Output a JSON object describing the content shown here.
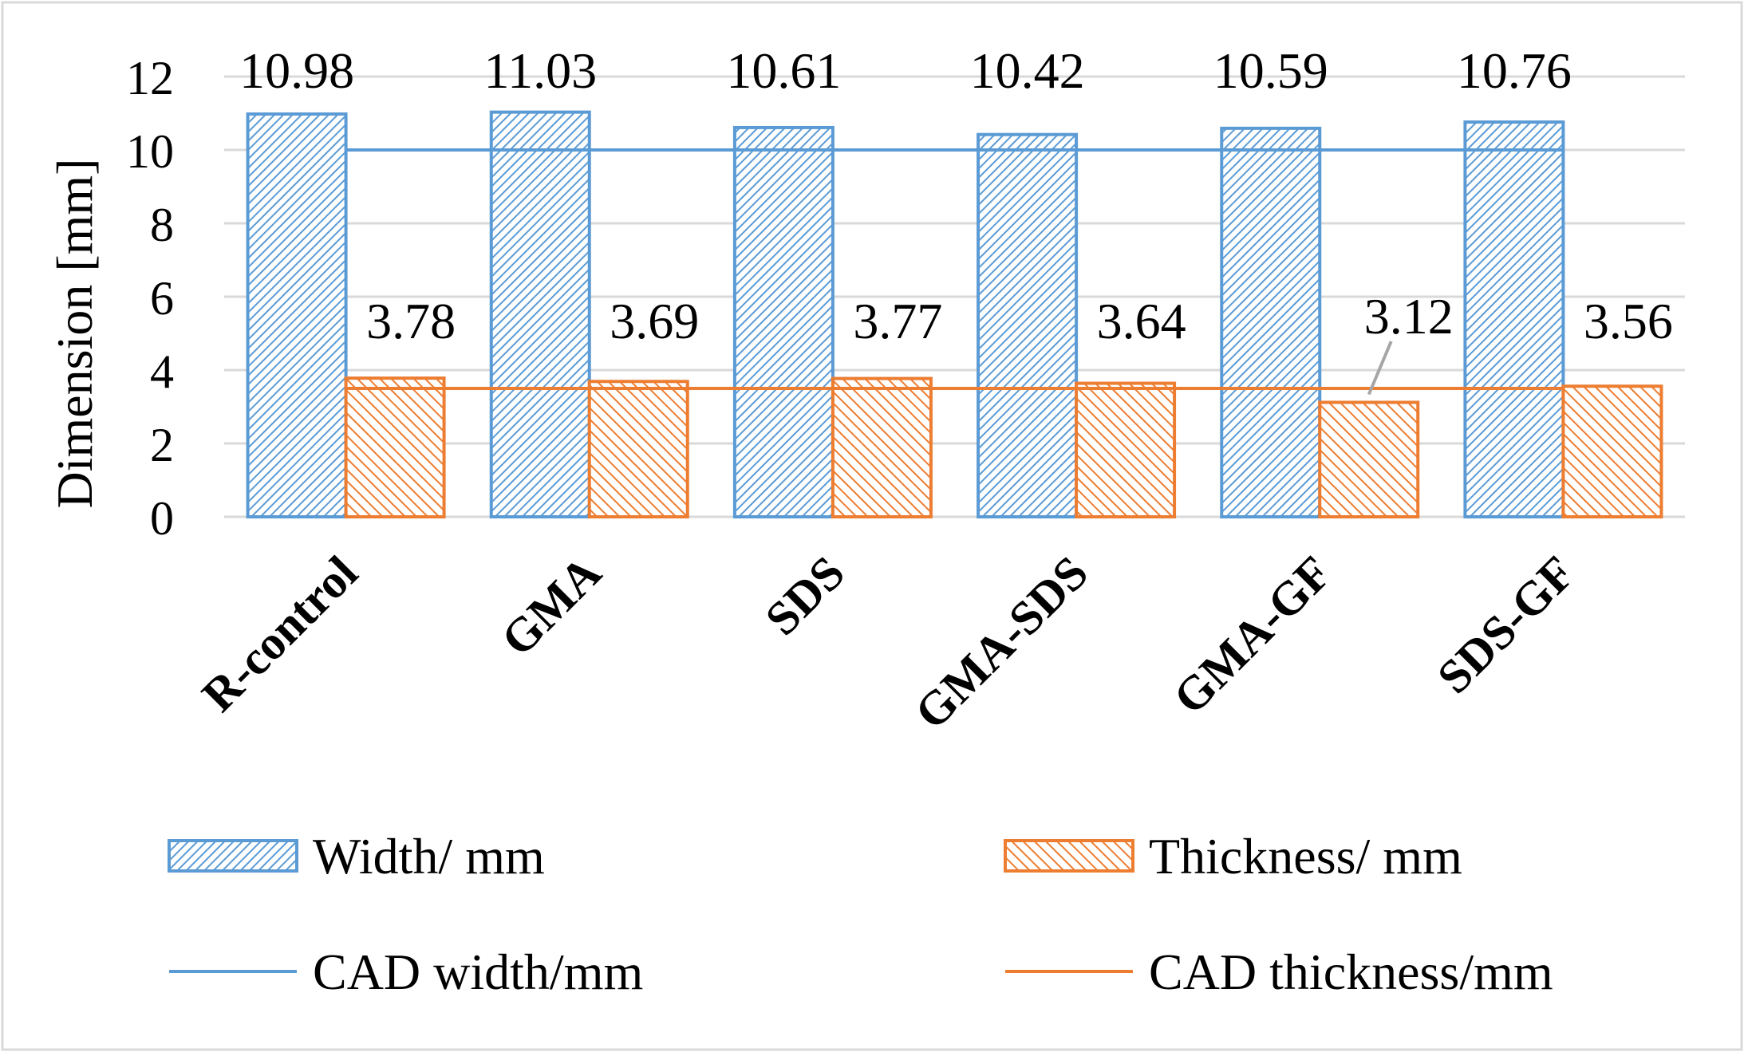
{
  "chart_data": {
    "type": "bar",
    "title": "",
    "xlabel": "",
    "ylabel": "Dimension [mm]",
    "ylim": [
      0,
      12
    ],
    "yticks": [
      0,
      2,
      4,
      6,
      8,
      10,
      12
    ],
    "grid": true,
    "categories": [
      "R-control",
      "GMA",
      "SDS",
      "GMA-SDS",
      "GMA-GF",
      "SDS-GF"
    ],
    "series": [
      {
        "name": "Width/ mm",
        "values": [
          10.98,
          11.03,
          10.61,
          10.42,
          10.59,
          10.76
        ],
        "labels": [
          "10.98",
          "11.03",
          "10.61",
          "10.42",
          "10.59",
          "10.76"
        ],
        "color": "#5B9BD5",
        "pattern": "hatched"
      },
      {
        "name": "Thickness/ mm",
        "values": [
          3.78,
          3.69,
          3.77,
          3.64,
          3.12,
          3.56
        ],
        "labels": [
          "3.78",
          "3.69",
          "3.77",
          "3.64",
          "3.12",
          "3.56"
        ],
        "color": "#ED7D31",
        "pattern": "hatched"
      }
    ],
    "reference_lines": [
      {
        "name": "CAD width/mm",
        "value": 10,
        "color": "#5B9BD5"
      },
      {
        "name": "CAD thickness/mm",
        "value": 3.5,
        "color": "#ED7D31"
      }
    ],
    "legend": {
      "position": "bottom"
    }
  }
}
